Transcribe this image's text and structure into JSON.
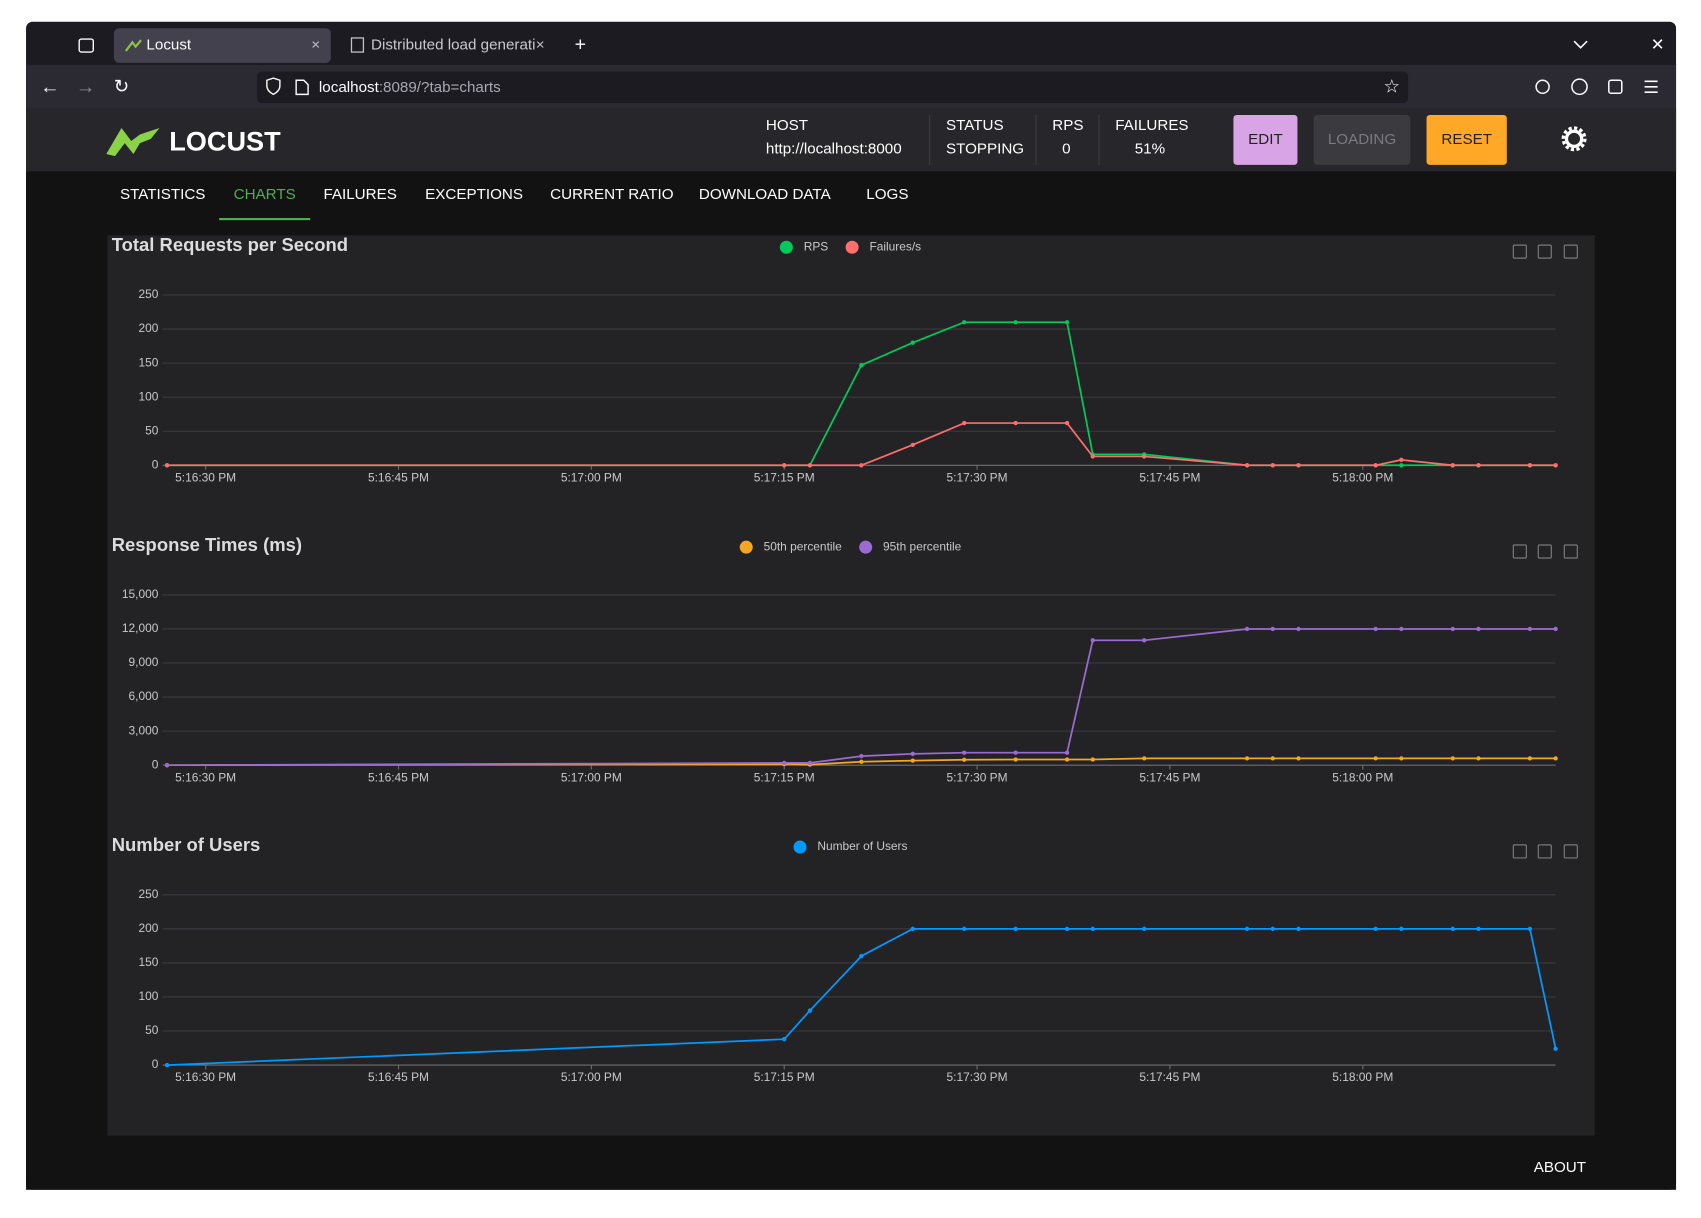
{
  "browser": {
    "tabs": [
      "Locust",
      "Distributed load generati"
    ],
    "url": {
      "host": "localhost",
      "path": ":8089/?tab=charts"
    }
  },
  "header": {
    "logo": "LOCUST",
    "stats": [
      {
        "label": "HOST",
        "value": "http://localhost:8000"
      },
      {
        "label": "STATUS",
        "value": "STOPPING"
      },
      {
        "label": "RPS",
        "value": "0"
      },
      {
        "label": "FAILURES",
        "value": "51%"
      }
    ],
    "buttons": [
      "EDIT",
      "LOADING",
      "RESET"
    ]
  },
  "nav": {
    "tabs": [
      "STATISTICS",
      "CHARTS",
      "FAILURES",
      "EXCEPTIONS",
      "CURRENT RATIO",
      "DOWNLOAD DATA",
      "LOGS"
    ],
    "active": 1
  },
  "chart_data": [
    {
      "type": "line",
      "title": "Total Requests per Second",
      "x": [
        "5:16:27 PM",
        "5:17:15 PM",
        "5:17:17 PM",
        "5:17:21 PM",
        "5:17:25 PM",
        "5:17:29 PM",
        "5:17:33 PM",
        "5:17:37 PM",
        "5:17:39 PM",
        "5:17:43 PM",
        "5:17:51 PM",
        "5:17:53 PM",
        "5:17:55 PM",
        "5:18:01 PM",
        "5:18:03 PM",
        "5:18:07 PM",
        "5:18:09 PM",
        "5:18:13 PM",
        "5:18:15 PM"
      ],
      "xlim": [
        "5:16:27 PM",
        "5:18:15 PM"
      ],
      "xticks": [
        "5:16:30 PM",
        "5:16:45 PM",
        "5:17:00 PM",
        "5:17:15 PM",
        "5:17:30 PM",
        "5:17:45 PM",
        "5:18:00 PM"
      ],
      "ylim": [
        0,
        250
      ],
      "yticks": [
        0,
        50,
        100,
        150,
        200,
        250
      ],
      "grid": true,
      "series": [
        {
          "name": "RPS",
          "color": "#00ca5a",
          "values": [
            0,
            0,
            0,
            147,
            180,
            210,
            210,
            210,
            16,
            16,
            0,
            0,
            0,
            0,
            0,
            0,
            0,
            0,
            0
          ]
        },
        {
          "name": "Failures/s",
          "color": "#ff6d6d",
          "values": [
            0,
            0,
            0,
            0,
            30,
            62,
            62,
            62,
            13,
            13,
            0,
            0,
            0,
            0,
            8,
            0,
            0,
            0,
            0
          ]
        }
      ]
    },
    {
      "type": "line",
      "title": "Response Times (ms)",
      "x": [
        "5:16:27 PM",
        "5:17:15 PM",
        "5:17:17 PM",
        "5:17:21 PM",
        "5:17:25 PM",
        "5:17:29 PM",
        "5:17:33 PM",
        "5:17:37 PM",
        "5:17:39 PM",
        "5:17:43 PM",
        "5:17:51 PM",
        "5:17:53 PM",
        "5:17:55 PM",
        "5:18:01 PM",
        "5:18:03 PM",
        "5:18:07 PM",
        "5:18:09 PM",
        "5:18:13 PM",
        "5:18:15 PM"
      ],
      "xlim": [
        "5:16:27 PM",
        "5:18:15 PM"
      ],
      "xticks": [
        "5:16:30 PM",
        "5:16:45 PM",
        "5:17:00 PM",
        "5:17:15 PM",
        "5:17:30 PM",
        "5:17:45 PM",
        "5:18:00 PM"
      ],
      "ylim": [
        0,
        15000
      ],
      "yticks": [
        0,
        {
          "value": 3000,
          "label": "3,000"
        },
        {
          "value": 6000,
          "label": "6,000"
        },
        {
          "value": 9000,
          "label": "9,000"
        },
        {
          "value": 12000,
          "label": "12,000"
        },
        {
          "value": 15000,
          "label": "15,000"
        }
      ],
      "grid": true,
      "series": [
        {
          "name": "50th percentile",
          "color": "#f5a623",
          "values": [
            0,
            100,
            50,
            300,
            400,
            480,
            500,
            500,
            500,
            600,
            600,
            600,
            600,
            600,
            600,
            600,
            600,
            600,
            600
          ]
        },
        {
          "name": "95th percentile",
          "color": "#9b6bd1",
          "values": [
            0,
            200,
            200,
            800,
            1000,
            1100,
            1100,
            1100,
            11000,
            11000,
            12000,
            12000,
            12000,
            12000,
            12000,
            12000,
            12000,
            12000,
            12000
          ]
        }
      ]
    },
    {
      "type": "line",
      "title": "Number of Users",
      "x": [
        "5:16:27 PM",
        "5:17:15 PM",
        "5:17:17 PM",
        "5:17:21 PM",
        "5:17:25 PM",
        "5:17:29 PM",
        "5:17:33 PM",
        "5:17:37 PM",
        "5:17:39 PM",
        "5:17:43 PM",
        "5:17:51 PM",
        "5:17:53 PM",
        "5:17:55 PM",
        "5:18:01 PM",
        "5:18:03 PM",
        "5:18:07 PM",
        "5:18:09 PM",
        "5:18:13 PM",
        "5:18:15 PM"
      ],
      "xlim": [
        "5:16:27 PM",
        "5:18:15 PM"
      ],
      "xticks": [
        "5:16:30 PM",
        "5:16:45 PM",
        "5:17:00 PM",
        "5:17:15 PM",
        "5:17:30 PM",
        "5:17:45 PM",
        "5:18:00 PM"
      ],
      "ylim": [
        0,
        250
      ],
      "yticks": [
        0,
        50,
        100,
        150,
        200,
        250
      ],
      "grid": true,
      "series": [
        {
          "name": "Number of Users",
          "color": "#0099ff",
          "values": [
            0,
            38,
            80,
            160,
            200,
            200,
            200,
            200,
            200,
            200,
            200,
            200,
            200,
            200,
            200,
            200,
            200,
            200,
            24
          ]
        }
      ]
    }
  ],
  "footer": {
    "about": "ABOUT"
  }
}
